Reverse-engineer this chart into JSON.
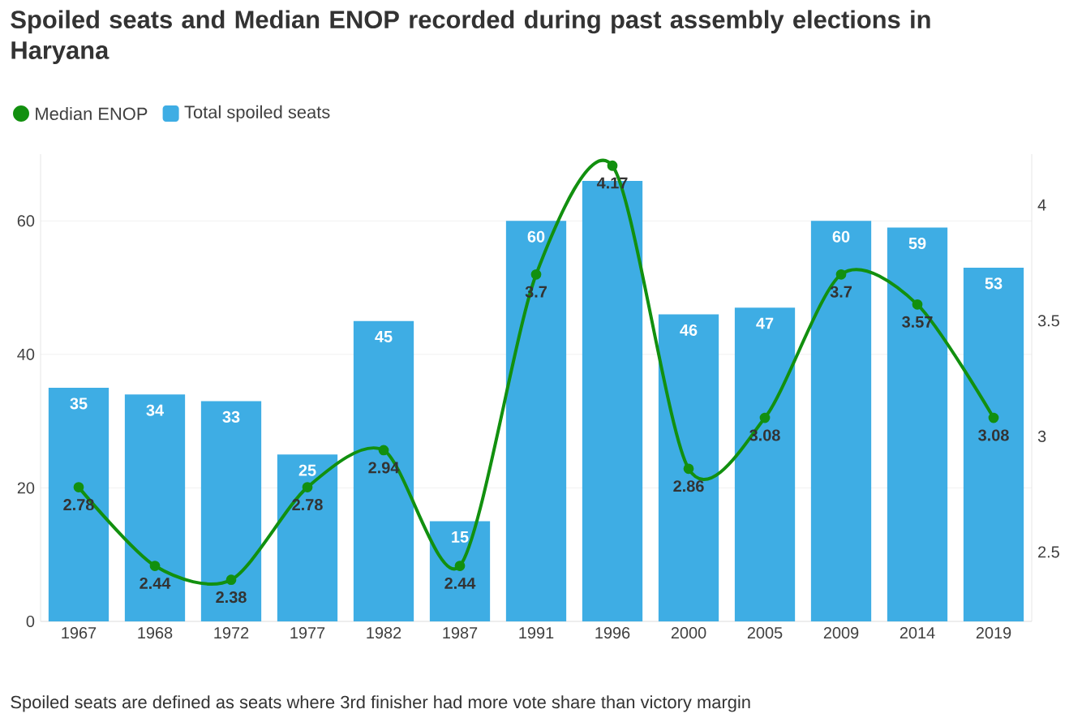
{
  "chart_data": {
    "type": "bar",
    "title": "Spoiled seats and Median ENOP recorded during past assembly elections in Haryana",
    "categories": [
      "1967",
      "1968",
      "1972",
      "1977",
      "1982",
      "1987",
      "1991",
      "1996",
      "2000",
      "2005",
      "2009",
      "2014",
      "2019"
    ],
    "series": [
      {
        "name": "Median ENOP",
        "type": "line",
        "axis": "y2",
        "color": "#12900f",
        "marker": "circle",
        "values": [
          2.78,
          2.44,
          2.38,
          2.78,
          2.94,
          2.44,
          3.7,
          4.17,
          2.86,
          3.08,
          3.7,
          3.57,
          3.08
        ],
        "value_labels": [
          "2.78",
          "2.44",
          "2.38",
          "2.78",
          "2.94",
          "2.44",
          "3.7",
          "4.17",
          "2.86",
          "3.08",
          "3.7",
          "3.57",
          "3.08"
        ]
      },
      {
        "name": "Total spoiled seats",
        "color": "#3eade4",
        "values": [
          35,
          34,
          33,
          25,
          45,
          15,
          60,
          66,
          46,
          47,
          60,
          59,
          53
        ],
        "value_labels": [
          "35",
          "34",
          "33",
          "25",
          "45",
          "15",
          "60",
          null,
          "46",
          "47",
          "60",
          "59",
          "53"
        ]
      }
    ],
    "ylim": [
      0,
      70
    ],
    "yticks": [
      0,
      20,
      40,
      60
    ],
    "y2lim": [
      2.2,
      4.22
    ],
    "y2ticks": [
      2.5,
      3,
      3.5,
      4
    ],
    "grid": "y",
    "legend": "top left",
    "annotations": [
      "Spoiled seats are defined as seats where 3rd finisher had more vote share than victory margin"
    ]
  }
}
